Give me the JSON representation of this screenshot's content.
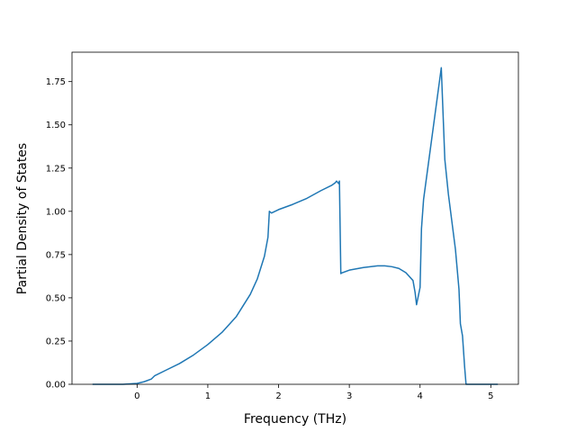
{
  "chart_data": {
    "type": "line",
    "xlabel": "Frequency (THz)",
    "ylabel": "Partial Density of States",
    "x": [
      -0.63,
      -0.4,
      -0.2,
      0,
      0.1,
      0.2,
      0.25,
      0.4,
      0.6,
      0.8,
      1.0,
      1.2,
      1.4,
      1.6,
      1.7,
      1.8,
      1.85,
      1.87,
      1.9,
      2.0,
      2.2,
      2.4,
      2.6,
      2.75,
      2.8,
      2.82,
      2.85,
      2.86,
      2.88,
      2.9,
      3.0,
      3.2,
      3.4,
      3.5,
      3.6,
      3.7,
      3.8,
      3.9,
      3.93,
      3.95,
      3.98,
      4.0,
      4.02,
      4.05,
      4.3,
      4.35,
      4.4,
      4.5,
      4.55,
      4.57,
      4.6,
      4.63,
      4.65,
      4.8,
      5.1
    ],
    "series": [
      {
        "color": "#1f77b4",
        "values": [
          0,
          0,
          0,
          0.005,
          0.015,
          0.03,
          0.05,
          0.08,
          0.12,
          0.17,
          0.23,
          0.3,
          0.39,
          0.52,
          0.61,
          0.74,
          0.85,
          1.0,
          0.99,
          1.01,
          1.04,
          1.075,
          1.12,
          1.15,
          1.165,
          1.175,
          1.16,
          1.175,
          0.64,
          0.645,
          0.66,
          0.675,
          0.685,
          0.685,
          0.68,
          0.67,
          0.645,
          0.6,
          0.53,
          0.46,
          0.52,
          0.56,
          0.9,
          1.07,
          1.83,
          1.3,
          1.1,
          0.78,
          0.55,
          0.35,
          0.28,
          0.1,
          0,
          0,
          0
        ]
      }
    ],
    "xlim": [
      -0.92,
      5.39
    ],
    "ylim": [
      0,
      1.92
    ],
    "xticks": [
      0,
      1,
      2,
      3,
      4,
      5
    ],
    "yticks": [
      {
        "value": 0,
        "label": "0.00"
      },
      {
        "value": 0.25,
        "label": "0.25"
      },
      {
        "value": 0.5,
        "label": "0.50"
      },
      {
        "value": 0.75,
        "label": "0.75"
      },
      {
        "value": 1,
        "label": "1.00"
      },
      {
        "value": 1.25,
        "label": "1.25"
      },
      {
        "value": 1.5,
        "label": "1.50"
      },
      {
        "value": 1.75,
        "label": "1.75"
      }
    ]
  }
}
